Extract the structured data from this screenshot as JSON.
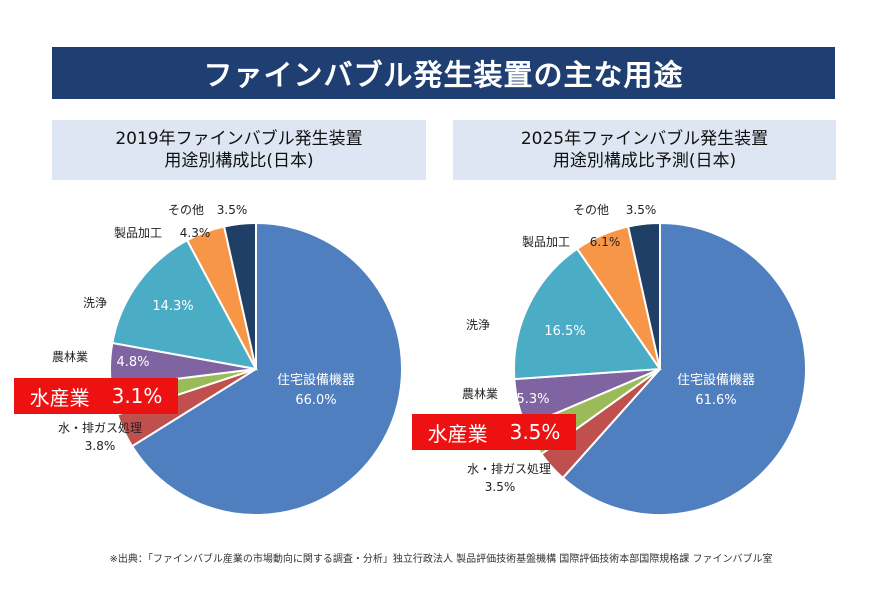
{
  "header": {
    "title": "ファインバブル発生装置の主な用途"
  },
  "footer": {
    "source": "※出典：「ファインバブル産業の市場動向に関する調査・分析」独立行政法人 製品評価技術基盤機構 国際評価技術本部国際規格課 ファインバブル室"
  },
  "chart_data": [
    {
      "type": "pie",
      "title_line1": "2019年ファインバブル発生装置",
      "title_line2": "用途別構成比(日本)",
      "highlight": {
        "label": "水産業",
        "value": "3.1%"
      },
      "slices": [
        {
          "name": "住宅設備機器",
          "value": 66.0,
          "label": "66.0%",
          "color": "#4f7fbf"
        },
        {
          "name": "水・排ガス処理",
          "value": 3.8,
          "label": "3.8%",
          "color": "#c0504d"
        },
        {
          "name": "水産業",
          "value": 3.1,
          "label": "3.1%",
          "color": "#9bbb59"
        },
        {
          "name": "農林業",
          "value": 4.8,
          "label": "4.8%",
          "color": "#8064a2"
        },
        {
          "name": "洗浄",
          "value": 14.3,
          "label": "14.3%",
          "color": "#4bacc6"
        },
        {
          "name": "製品加工",
          "value": 4.3,
          "label": "4.3%",
          "color": "#f79646"
        },
        {
          "name": "その他",
          "value": 3.5,
          "label": "3.5%",
          "color": "#1f3f66"
        }
      ]
    },
    {
      "type": "pie",
      "title_line1": "2025年ファインバブル発生装置",
      "title_line2": "用途別構成比予測(日本)",
      "highlight": {
        "label": "水産業",
        "value": "3.5%"
      },
      "slices": [
        {
          "name": "住宅設備機器",
          "value": 61.6,
          "label": "61.6%",
          "color": "#4f7fbf"
        },
        {
          "name": "水・排ガス処理",
          "value": 3.5,
          "label": "3.5%",
          "color": "#c0504d"
        },
        {
          "name": "水産業",
          "value": 3.5,
          "label": "3.5%",
          "color": "#9bbb59"
        },
        {
          "name": "農林業",
          "value": 5.3,
          "label": "5.3%",
          "color": "#8064a2"
        },
        {
          "name": "洗浄",
          "value": 16.5,
          "label": "16.5%",
          "color": "#4bacc6"
        },
        {
          "name": "製品加工",
          "value": 6.1,
          "label": "6.1%",
          "color": "#f79646"
        },
        {
          "name": "その他",
          "value": 3.5,
          "label": "3.5%",
          "color": "#1f3f66"
        }
      ]
    }
  ]
}
